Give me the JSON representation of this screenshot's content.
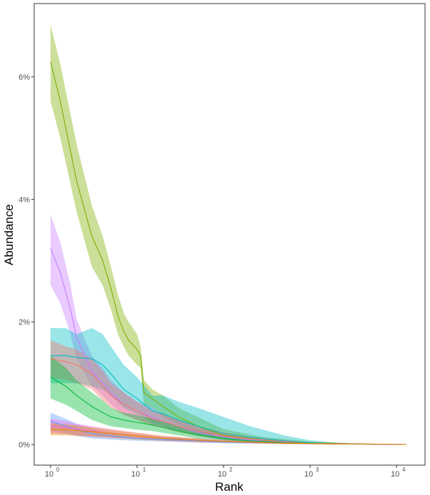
{
  "chart_data": {
    "type": "line",
    "xlabel": "Rank",
    "ylabel": "Abundance",
    "x_scale": "log10",
    "xlim": [
      1,
      14000
    ],
    "ylim": [
      -0.3,
      7.0
    ],
    "x_ticks": [
      {
        "value": 1,
        "base": "10",
        "exp": "0"
      },
      {
        "value": 10,
        "base": "10",
        "exp": "1"
      },
      {
        "value": 100,
        "base": "10",
        "exp": "2"
      },
      {
        "value": 1000,
        "base": "10",
        "exp": "3"
      },
      {
        "value": 10000,
        "base": "10",
        "exp": "4"
      }
    ],
    "y_ticks": [
      {
        "value": 0,
        "label": "0%"
      },
      {
        "value": 2,
        "label": "2%"
      },
      {
        "value": 4,
        "label": "4%"
      },
      {
        "value": 6,
        "label": "6%"
      }
    ],
    "grid": false,
    "legend": "none",
    "series": [
      {
        "color": "#7cae00",
        "x": [
          1,
          1.3,
          2,
          3,
          4,
          5,
          6,
          7,
          8,
          10,
          11,
          12,
          15,
          20,
          30,
          50,
          100,
          300,
          1000,
          3000,
          13000
        ],
        "y": [
          6.25,
          5.6,
          4.3,
          3.4,
          3.0,
          2.55,
          2.1,
          1.85,
          1.7,
          1.55,
          1.45,
          0.85,
          0.75,
          0.62,
          0.45,
          0.3,
          0.15,
          0.07,
          0.03,
          0.01,
          0.0
        ],
        "upper": [
          6.85,
          6.2,
          4.9,
          3.9,
          3.4,
          2.9,
          2.45,
          2.15,
          2.0,
          1.8,
          1.6,
          1.05,
          0.9,
          0.8,
          0.6,
          0.45,
          0.25,
          0.12,
          0.05,
          0.02,
          0.0
        ],
        "lower": [
          5.6,
          5.0,
          3.8,
          2.9,
          2.6,
          2.2,
          1.8,
          1.6,
          1.45,
          1.3,
          1.25,
          0.65,
          0.6,
          0.45,
          0.33,
          0.2,
          0.08,
          0.03,
          0.01,
          0.0,
          0.0
        ]
      },
      {
        "color": "#c77cff",
        "x": [
          1,
          1.3,
          1.7,
          2,
          2.5,
          3,
          4,
          5,
          7,
          10,
          15,
          20,
          30,
          50,
          100,
          300,
          1000,
          3000,
          13000
        ],
        "y": [
          3.2,
          2.8,
          2.2,
          1.75,
          1.45,
          1.2,
          1.0,
          0.85,
          0.65,
          0.55,
          0.45,
          0.38,
          0.3,
          0.2,
          0.12,
          0.05,
          0.02,
          0.01,
          0.0
        ],
        "upper": [
          3.75,
          3.3,
          2.6,
          2.05,
          1.7,
          1.45,
          1.25,
          1.05,
          0.85,
          0.7,
          0.6,
          0.5,
          0.4,
          0.28,
          0.18,
          0.08,
          0.03,
          0.01,
          0.0
        ],
        "lower": [
          2.6,
          2.3,
          1.8,
          1.4,
          1.15,
          0.95,
          0.8,
          0.65,
          0.5,
          0.4,
          0.33,
          0.28,
          0.22,
          0.14,
          0.07,
          0.03,
          0.01,
          0.0,
          0.0
        ]
      },
      {
        "color": "#00bfc4",
        "x": [
          1,
          1.5,
          2,
          3,
          4,
          5,
          7,
          10,
          15,
          20,
          30,
          50,
          100,
          200,
          500,
          1000,
          2000,
          13000
        ],
        "y": [
          1.45,
          1.45,
          1.42,
          1.4,
          1.3,
          1.15,
          0.9,
          0.75,
          0.55,
          0.5,
          0.4,
          0.3,
          0.18,
          0.12,
          0.06,
          0.03,
          0.01,
          0.0
        ],
        "upper": [
          1.9,
          1.9,
          1.8,
          1.9,
          1.8,
          1.6,
          1.3,
          1.1,
          0.8,
          0.8,
          0.7,
          0.6,
          0.45,
          0.3,
          0.15,
          0.07,
          0.03,
          0.0
        ],
        "lower": [
          1.0,
          1.0,
          1.0,
          0.95,
          0.9,
          0.8,
          0.6,
          0.5,
          0.35,
          0.3,
          0.22,
          0.15,
          0.08,
          0.04,
          0.02,
          0.01,
          0.0,
          0.0
        ]
      },
      {
        "color": "#f8766d",
        "x": [
          1,
          1.5,
          2,
          3,
          4,
          5,
          7,
          10,
          15,
          20,
          30,
          50,
          100,
          200,
          500,
          1000,
          2000,
          13000
        ],
        "y": [
          1.4,
          1.35,
          1.3,
          1.15,
          0.95,
          0.8,
          0.65,
          0.55,
          0.42,
          0.38,
          0.3,
          0.22,
          0.14,
          0.09,
          0.05,
          0.02,
          0.01,
          0.0
        ],
        "upper": [
          1.7,
          1.6,
          1.55,
          1.4,
          1.2,
          1.0,
          0.85,
          0.7,
          0.55,
          0.5,
          0.4,
          0.3,
          0.2,
          0.13,
          0.07,
          0.04,
          0.02,
          0.0
        ],
        "lower": [
          1.1,
          1.05,
          1.0,
          0.9,
          0.72,
          0.6,
          0.48,
          0.4,
          0.3,
          0.27,
          0.2,
          0.14,
          0.08,
          0.05,
          0.02,
          0.01,
          0.0,
          0.0
        ]
      },
      {
        "color": "#00ba38",
        "x": [
          1,
          1.5,
          2,
          3,
          4,
          5,
          7,
          10,
          15,
          20,
          30,
          50,
          100,
          200,
          500,
          1000,
          2000,
          13000
        ],
        "y": [
          1.1,
          0.95,
          0.8,
          0.62,
          0.52,
          0.45,
          0.4,
          0.36,
          0.32,
          0.28,
          0.22,
          0.16,
          0.1,
          0.06,
          0.03,
          0.02,
          0.01,
          0.0
        ],
        "upper": [
          1.45,
          1.25,
          1.05,
          0.85,
          0.72,
          0.6,
          0.52,
          0.48,
          0.42,
          0.38,
          0.3,
          0.23,
          0.14,
          0.09,
          0.05,
          0.03,
          0.02,
          0.0
        ],
        "lower": [
          0.75,
          0.65,
          0.55,
          0.4,
          0.34,
          0.3,
          0.27,
          0.24,
          0.22,
          0.19,
          0.15,
          0.1,
          0.06,
          0.03,
          0.02,
          0.01,
          0.0,
          0.0
        ]
      },
      {
        "color": "#619cff",
        "x": [
          1,
          1.5,
          2,
          3,
          5,
          10,
          20,
          50,
          100,
          500,
          2000,
          13000
        ],
        "y": [
          0.38,
          0.3,
          0.24,
          0.18,
          0.14,
          0.1,
          0.08,
          0.06,
          0.04,
          0.02,
          0.01,
          0.0
        ],
        "upper": [
          0.52,
          0.42,
          0.34,
          0.26,
          0.2,
          0.15,
          0.12,
          0.09,
          0.06,
          0.03,
          0.01,
          0.0
        ],
        "lower": [
          0.22,
          0.18,
          0.14,
          0.1,
          0.08,
          0.06,
          0.05,
          0.03,
          0.02,
          0.01,
          0.0,
          0.0
        ]
      },
      {
        "color": "#f564e3",
        "x": [
          1,
          1.5,
          2,
          3,
          5,
          10,
          20,
          50,
          100,
          500,
          2000,
          13000
        ],
        "y": [
          0.3,
          0.28,
          0.25,
          0.22,
          0.18,
          0.14,
          0.1,
          0.07,
          0.05,
          0.02,
          0.01,
          0.0
        ],
        "upper": [
          0.42,
          0.38,
          0.34,
          0.3,
          0.25,
          0.19,
          0.14,
          0.1,
          0.07,
          0.03,
          0.01,
          0.0
        ],
        "lower": [
          0.18,
          0.17,
          0.15,
          0.13,
          0.11,
          0.09,
          0.06,
          0.04,
          0.03,
          0.01,
          0.0,
          0.0
        ]
      },
      {
        "color": "#e58700",
        "x": [
          1,
          1.5,
          2,
          3,
          5,
          10,
          20,
          50,
          100,
          500,
          2000,
          13000
        ],
        "y": [
          0.25,
          0.24,
          0.23,
          0.21,
          0.18,
          0.14,
          0.1,
          0.07,
          0.05,
          0.02,
          0.01,
          0.0
        ],
        "upper": [
          0.35,
          0.33,
          0.31,
          0.28,
          0.24,
          0.19,
          0.14,
          0.1,
          0.07,
          0.03,
          0.01,
          0.0
        ],
        "lower": [
          0.15,
          0.15,
          0.14,
          0.13,
          0.11,
          0.08,
          0.06,
          0.04,
          0.03,
          0.01,
          0.0,
          0.0
        ]
      }
    ]
  }
}
